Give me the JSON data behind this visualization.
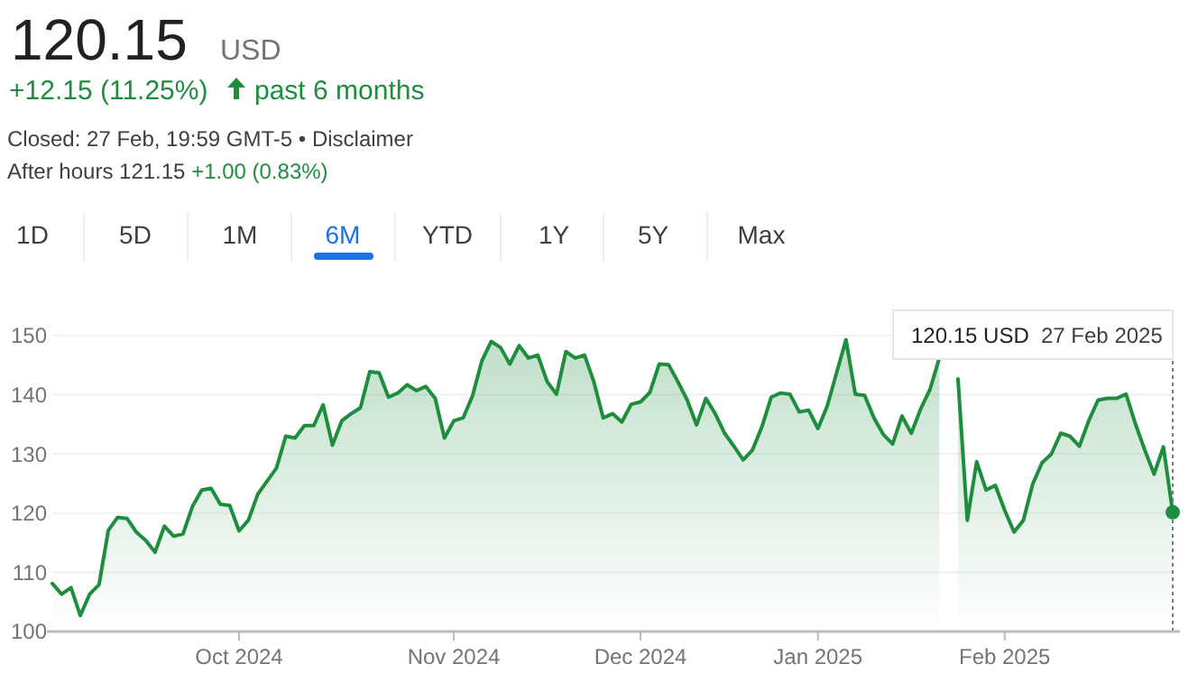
{
  "chart_data": {
    "type": "area",
    "title": "120.15",
    "annotations": [
      "USD",
      "+12.15 (11.25%)",
      "past 6 months",
      "Closed: 27 Feb, 19:59 GMT-5 • Disclaimer",
      "After hours 121.15",
      "+1.00 (0.83%)",
      "1D",
      "5D",
      "1M",
      "6M",
      "YTD",
      "1Y",
      "5Y",
      "Max",
      "120.15 USD",
      "27 Feb 2025"
    ],
    "categories": [
      null,
      null,
      null,
      null,
      null,
      null,
      null,
      null,
      null,
      null,
      null,
      null,
      null,
      null,
      null,
      null,
      null,
      null,
      null,
      null,
      "Oct 2024",
      null,
      null,
      null,
      null,
      null,
      null,
      null,
      null,
      null,
      null,
      null,
      null,
      null,
      null,
      null,
      null,
      null,
      null,
      null,
      null,
      null,
      null,
      "Nov 2024",
      null,
      null,
      null,
      null,
      null,
      null,
      null,
      null,
      null,
      null,
      null,
      null,
      null,
      null,
      null,
      null,
      null,
      null,
      null,
      "Dec 2024",
      null,
      null,
      null,
      null,
      null,
      null,
      null,
      null,
      null,
      null,
      null,
      null,
      null,
      null,
      null,
      null,
      null,
      null,
      "Jan 2025",
      null,
      null,
      null,
      null,
      null,
      null,
      null,
      null,
      null,
      null,
      null,
      null,
      null,
      null,
      null,
      null,
      null,
      null,
      null,
      "Feb 2025",
      null,
      null,
      null,
      null,
      null,
      null,
      null,
      null,
      null,
      null,
      null,
      null,
      null,
      null,
      null,
      null,
      null,
      null
    ],
    "series": [
      {
        "color": "#1e8e3e",
        "values": [
          108.1,
          106.3,
          107.4,
          102.7,
          106.3,
          107.9,
          117.1,
          119.3,
          119.1,
          116.8,
          115.4,
          113.4,
          117.8,
          116.1,
          116.5,
          121.1,
          123.9,
          124.2,
          121.5,
          121.3,
          117.0,
          118.8,
          123.2,
          125.4,
          127.6,
          133.0,
          132.7,
          134.8,
          134.8,
          138.3,
          131.5,
          135.6,
          136.8,
          137.8,
          143.9,
          143.7,
          139.6,
          140.3,
          141.7,
          140.7,
          141.4,
          139.4,
          132.7,
          135.6,
          136.1,
          139.8,
          145.7,
          149.0,
          148.0,
          145.2,
          148.3,
          146.2,
          146.7,
          142.2,
          140.1,
          147.3,
          146.2,
          146.7,
          142.2,
          136.1,
          136.8,
          135.4,
          138.4,
          138.8,
          140.4,
          145.2,
          145.1,
          142.2,
          139.1,
          134.9,
          139.4,
          136.8,
          133.5,
          131.3,
          129.0,
          130.7,
          134.6,
          139.6,
          140.3,
          140.1,
          137.1,
          137.4,
          134.3,
          138.1,
          143.7,
          149.3,
          140.1,
          139.9,
          136.1,
          133.3,
          131.7,
          136.4,
          133.5,
          137.6,
          140.9,
          146.2,
          null,
          142.7,
          118.8,
          128.7,
          123.9,
          124.7,
          120.5,
          116.8,
          118.8,
          124.9,
          128.5,
          130.0,
          133.5,
          133.0,
          131.3,
          135.6,
          139.1,
          139.4,
          139.4,
          140.1,
          135.1,
          130.7,
          126.6,
          131.2,
          120.15
        ]
      }
    ],
    "ylim": [
      100,
      155
    ],
    "yticks": [
      100,
      110,
      120,
      130,
      140,
      150
    ],
    "grid": "y",
    "marker": "none",
    "line_style": "solid"
  }
}
